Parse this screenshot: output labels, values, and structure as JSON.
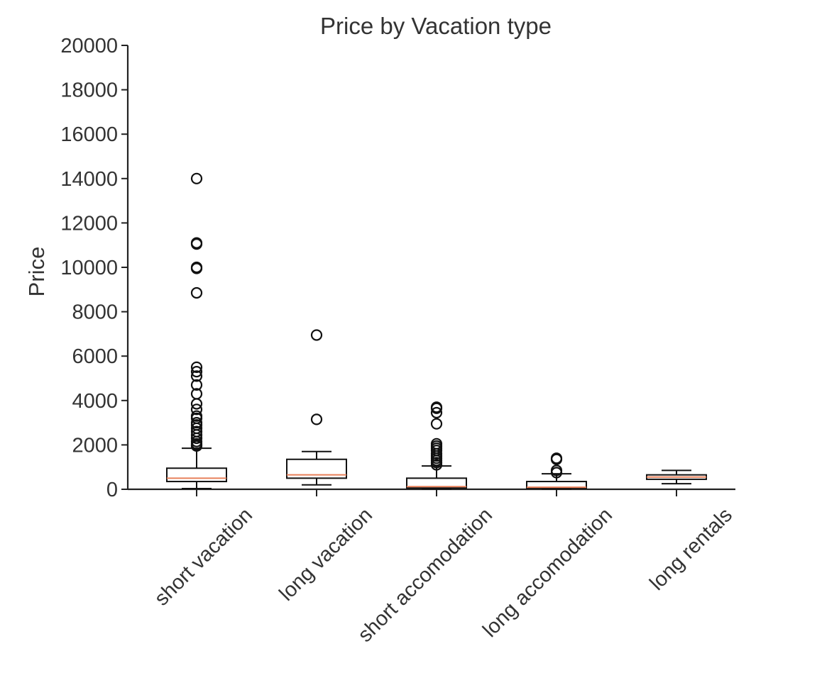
{
  "chart_data": {
    "type": "box",
    "title": "Price by Vacation type",
    "xlabel": "",
    "ylabel": "Price",
    "ylim": [
      0,
      20000
    ],
    "yticks": [
      0,
      2000,
      4000,
      6000,
      8000,
      10000,
      12000,
      14000,
      16000,
      18000,
      20000
    ],
    "grid": false,
    "categories": [
      "short vacation",
      "long vacation",
      "short accomodation",
      "long accomodation",
      "long rentals"
    ],
    "boxes": [
      {
        "category": "short vacation",
        "whisker_low": 30,
        "q1": 350,
        "median": 500,
        "q3": 950,
        "whisker_high": 1850,
        "outliers": [
          1950,
          2000,
          2050,
          2150,
          2300,
          2450,
          2600,
          2750,
          2900,
          3000,
          3200,
          3300,
          3600,
          3850,
          4300,
          4700,
          5100,
          5300,
          5500,
          8850,
          9950,
          10000,
          11050,
          11100,
          14000
        ]
      },
      {
        "category": "long vacation",
        "whisker_low": 200,
        "q1": 500,
        "median": 650,
        "q3": 1350,
        "whisker_high": 1700,
        "outliers": [
          3150,
          6950
        ]
      },
      {
        "category": "short accomodation",
        "whisker_low": 20,
        "q1": 60,
        "median": 120,
        "q3": 500,
        "whisker_high": 1050,
        "outliers": [
          1100,
          1200,
          1300,
          1400,
          1500,
          1600,
          1750,
          1850,
          1950,
          2050,
          2950,
          3450,
          3650,
          3700
        ]
      },
      {
        "category": "long accomodation",
        "whisker_low": 10,
        "q1": 50,
        "median": 90,
        "q3": 350,
        "whisker_high": 700,
        "outliers": [
          750,
          850,
          1350,
          1400
        ]
      },
      {
        "category": "long rentals",
        "whisker_low": 250,
        "q1": 450,
        "median": 550,
        "q3": 650,
        "whisker_high": 850,
        "outliers": []
      }
    ],
    "colors": {
      "box_edge": "#111111",
      "median": "#e8805a",
      "text": "#333333"
    }
  }
}
